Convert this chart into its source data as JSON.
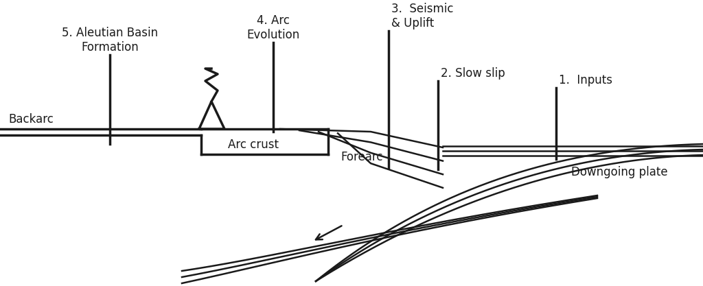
{
  "fig_width": 10.24,
  "fig_height": 4.17,
  "dpi": 100,
  "lw_main": 1.8,
  "lw_thick": 2.5,
  "color": "#1a1a1a",
  "labels": {
    "backarc": "Backarc",
    "arc_crust": "Arc crust",
    "forearc": "Forearc",
    "downgoing": "Downgoing plate",
    "site1": "1.  Inputs",
    "site2": "2. Slow slip",
    "site3": "3.  Seismic\n& Uplift",
    "site4": "4. Arc\nEvolution",
    "site5": "5. Aleutian Basin\nFormation"
  }
}
